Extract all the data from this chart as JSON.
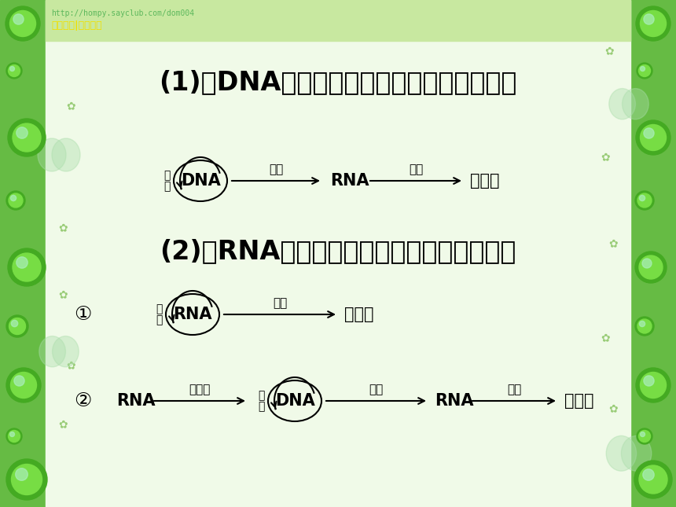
{
  "bg_color": "#ffffff",
  "green_border": "#5cb85c",
  "light_green_bg": "#e8f5e0",
  "title1": "(1)以DNA为遗传物质的生物遗传信息的传递",
  "title2": "(2)以RNA为遗传物质的生物遗传信息的传递",
  "watermark1": "http://hompy.sayclub.com/dom004",
  "watermark2": "세이클럽|아름다운",
  "title_fontsize": 24,
  "label_fontsize": 15,
  "small_fontsize": 11,
  "fzhi_fontsize": 10,
  "num_fontsize": 18,
  "text_color": "#000000",
  "watermark_color": "#5cb85c",
  "watermark2_color": "#f0e000"
}
